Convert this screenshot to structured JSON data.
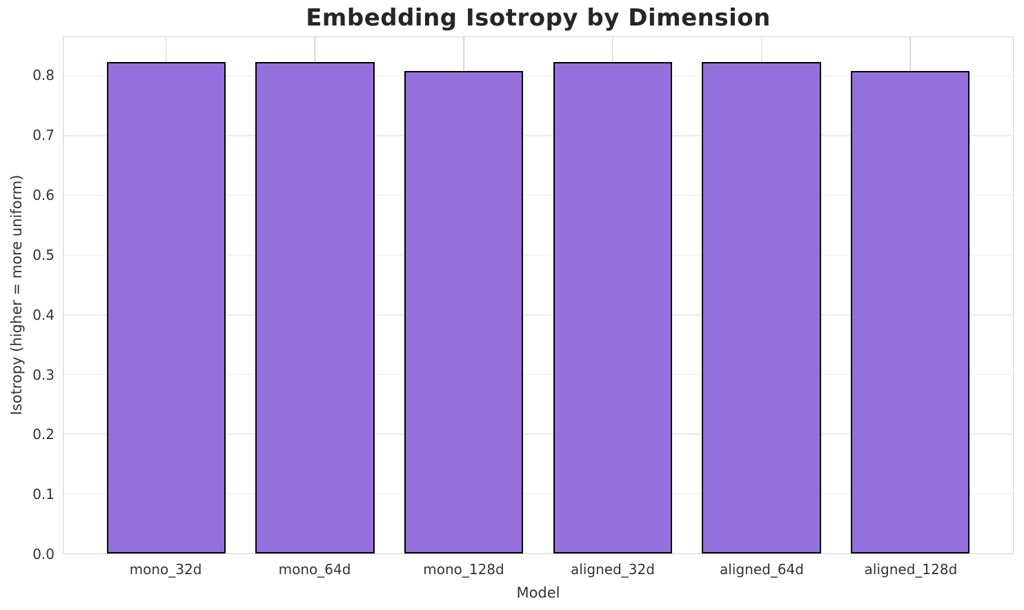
{
  "chart_data": {
    "type": "bar",
    "title": "Embedding Isotropy by Dimension",
    "xlabel": "Model",
    "ylabel": "Isotropy (higher = more uniform)",
    "categories": [
      "mono_32d",
      "mono_64d",
      "mono_128d",
      "aligned_32d",
      "aligned_64d",
      "aligned_128d"
    ],
    "values": [
      0.823,
      0.823,
      0.809,
      0.823,
      0.823,
      0.809
    ],
    "yticks": [
      0.0,
      0.1,
      0.2,
      0.3,
      0.4,
      0.5,
      0.6,
      0.7,
      0.8
    ],
    "ytick_labels": [
      "0.0",
      "0.1",
      "0.2",
      "0.3",
      "0.4",
      "0.5",
      "0.6",
      "0.7",
      "0.8"
    ],
    "ylim": [
      0,
      0.865
    ],
    "grid": true,
    "legend": null,
    "colors": {
      "bar_fill": "#9370DB",
      "bar_edge": "#000000",
      "background": "#ffffff",
      "grid_horizontal": "#ececec",
      "grid_vertical": "#d6d6d6",
      "spine": "#d4d4d4",
      "title_text": "#262626",
      "tick_text": "#333333"
    }
  }
}
